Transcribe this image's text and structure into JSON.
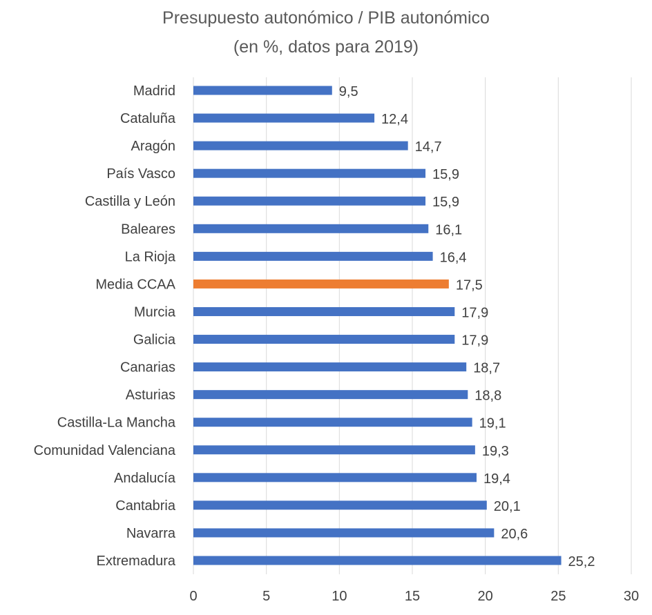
{
  "chart_data": {
    "type": "bar",
    "orientation": "horizontal",
    "title": "Presupuesto autonómico / PIB autonómico",
    "subtitle": "(en %, datos para 2019)",
    "categories": [
      "Madrid",
      "Cataluña",
      "Aragón",
      "País Vasco",
      "Castilla y León",
      "Baleares",
      "La Rioja",
      "Media CCAA",
      "Murcia",
      "Galicia",
      "Canarias",
      "Asturias",
      "Castilla-La Mancha",
      "Comunidad Valenciana",
      "Andalucía",
      "Cantabria",
      "Navarra",
      "Extremadura"
    ],
    "values": [
      9.5,
      12.4,
      14.7,
      15.9,
      15.9,
      16.1,
      16.4,
      17.5,
      17.9,
      17.9,
      18.7,
      18.8,
      19.1,
      19.3,
      19.4,
      20.1,
      20.6,
      25.2
    ],
    "data_labels": [
      "9,5",
      "12,4",
      "14,7",
      "15,9",
      "15,9",
      "16,1",
      "16,4",
      "17,5",
      "17,9",
      "17,9",
      "18,7",
      "18,8",
      "19,1",
      "19,3",
      "19,4",
      "20,1",
      "20,6",
      "25,2"
    ],
    "highlight_category": "Media CCAA",
    "colors": {
      "default": "#4472C4",
      "highlight": "#ED7D31",
      "grid": "#D9D9D9"
    },
    "xlim": [
      0,
      30
    ],
    "xticks": [
      0,
      5,
      10,
      15,
      20,
      25,
      30
    ],
    "grid": true,
    "xlabel": "",
    "ylabel": ""
  }
}
